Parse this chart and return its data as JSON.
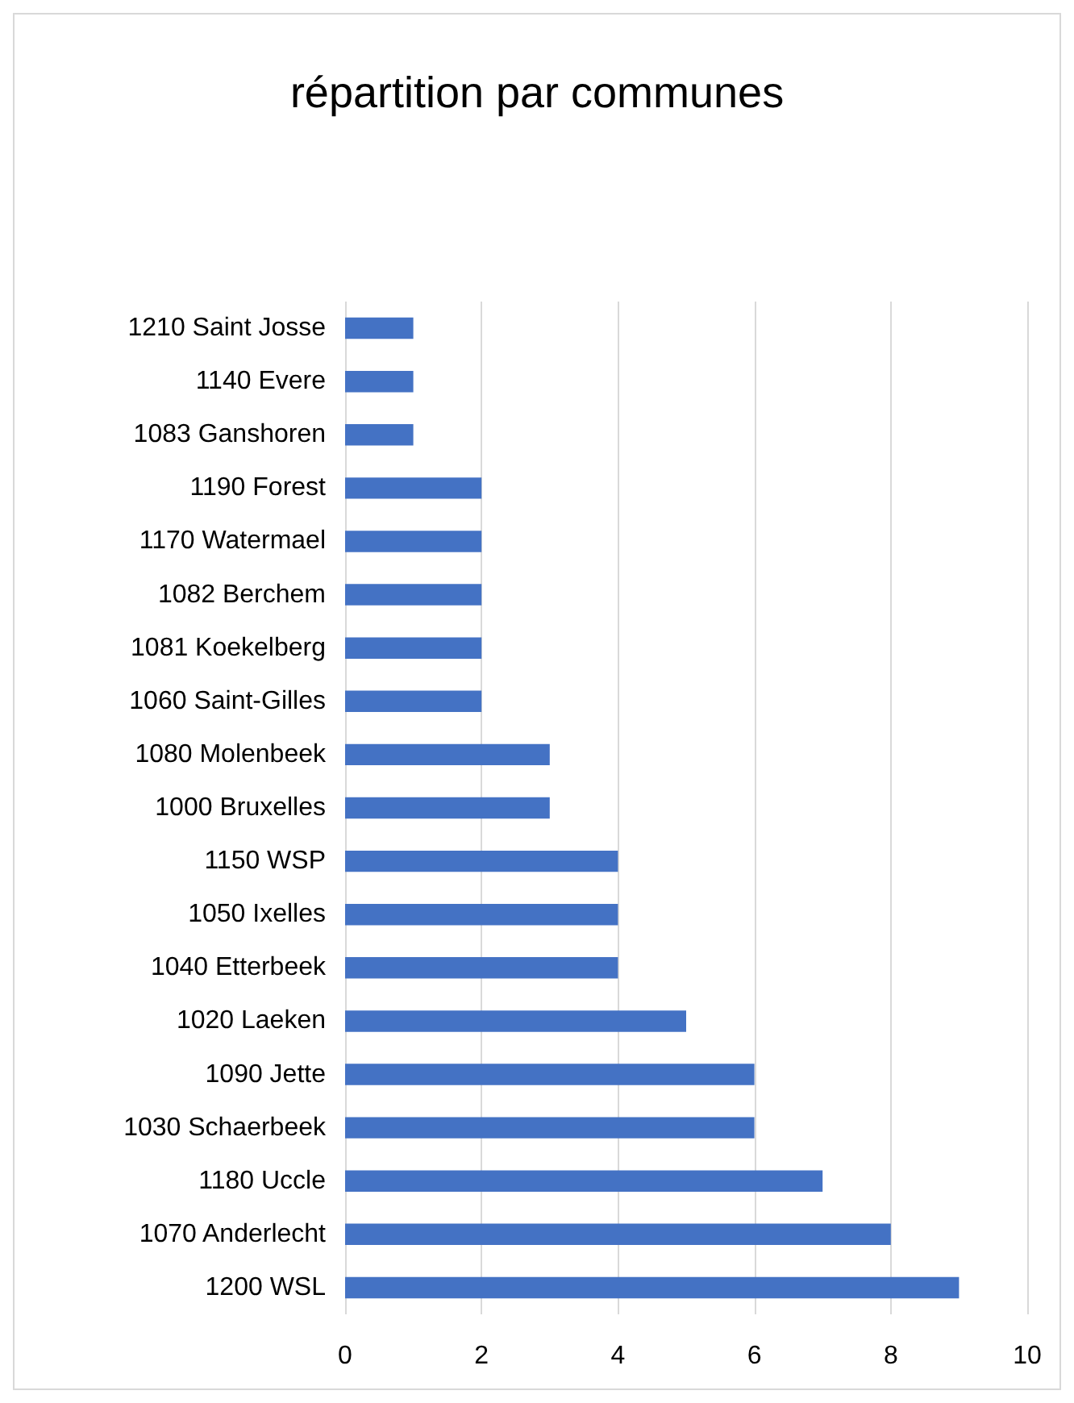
{
  "chart_data": {
    "type": "bar",
    "orientation": "horizontal",
    "title": "répartition par communes",
    "categories": [
      "1210 Saint Josse",
      "1140 Evere",
      "1083 Ganshoren",
      "1190 Forest",
      "1170 Watermael",
      "1082 Berchem",
      "1081 Koekelberg",
      "1060 Saint-Gilles",
      "1080 Molenbeek",
      "1000 Bruxelles",
      "1150 WSP",
      "1050 Ixelles",
      "1040 Etterbeek",
      "1020 Laeken",
      "1090 Jette",
      "1030 Schaerbeek",
      "1180 Uccle",
      "1070 Anderlecht",
      "1200 WSL"
    ],
    "values": [
      1,
      1,
      1,
      2,
      2,
      2,
      2,
      2,
      3,
      3,
      4,
      4,
      4,
      5,
      6,
      6,
      7,
      8,
      9
    ],
    "color": "#4472c4",
    "xlim": [
      0,
      10
    ],
    "xticks": [
      0,
      2,
      4,
      6,
      8,
      10
    ],
    "grid": "x"
  }
}
